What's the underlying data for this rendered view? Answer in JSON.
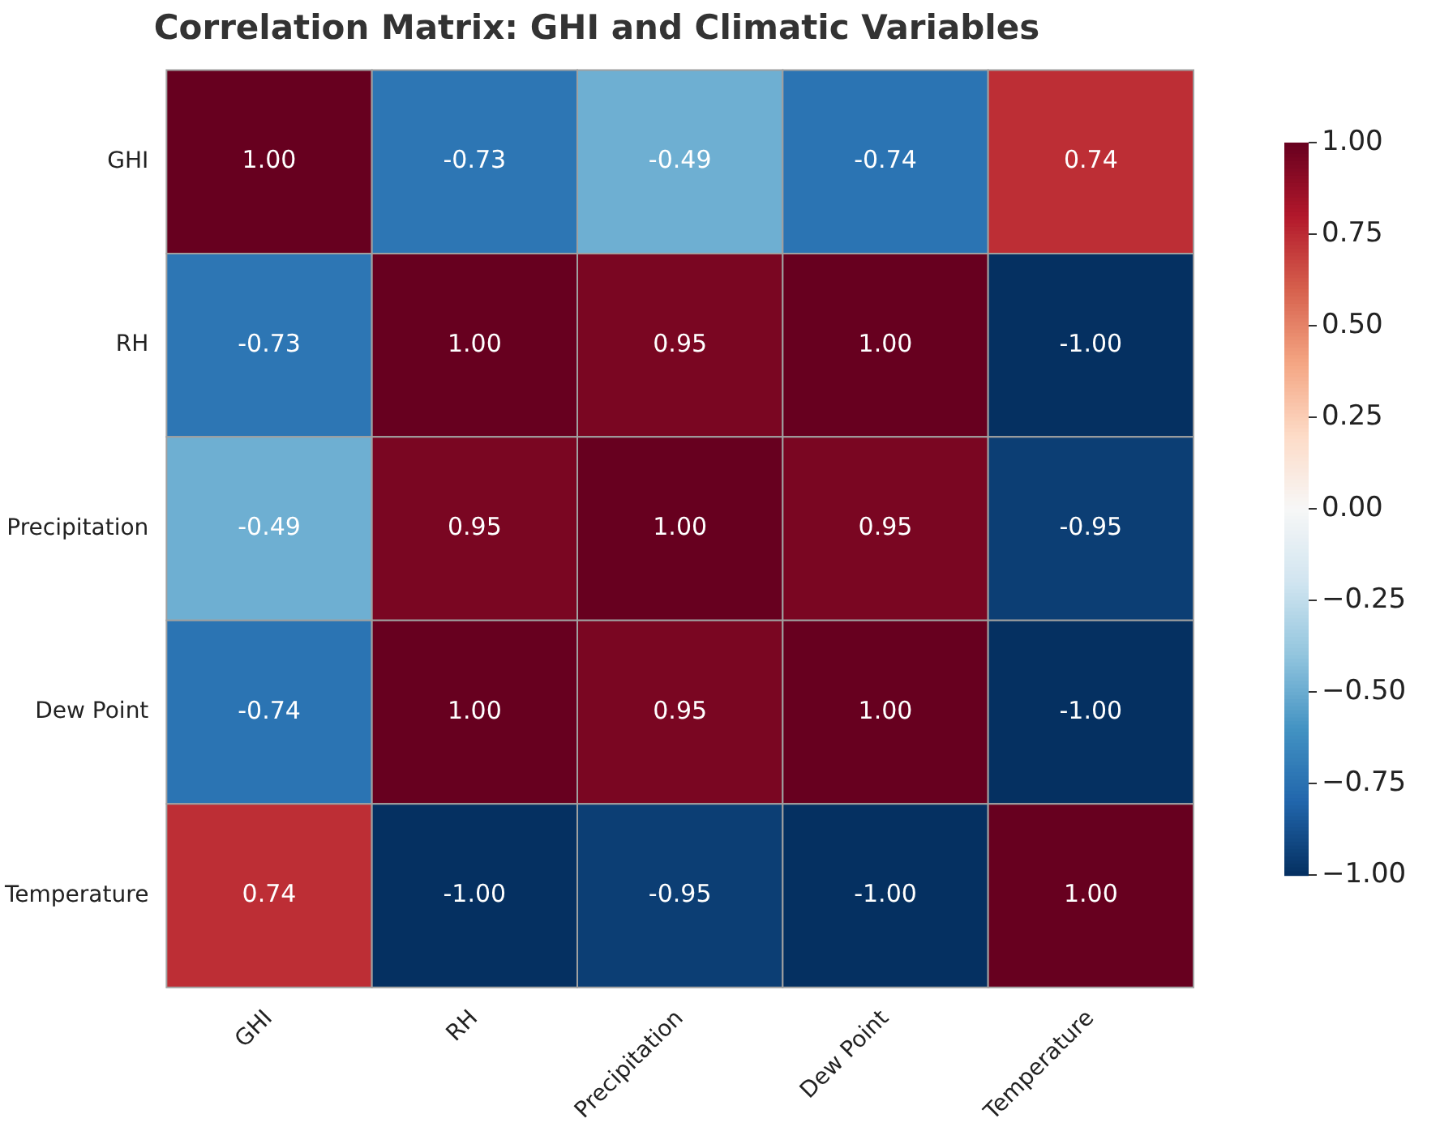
{
  "chart_data": {
    "type": "heatmap",
    "title": "Correlation Matrix: GHI and Climatic Variables",
    "categories": [
      "GHI",
      "RH",
      "Precipitation",
      "Dew Point",
      "Temperature"
    ],
    "y_categories": [
      "GHI",
      "RH",
      "Precipitation",
      "Dew Point",
      "Temperature"
    ],
    "cells": [
      [
        1.0,
        -0.73,
        -0.49,
        -0.74,
        0.74
      ],
      [
        -0.73,
        1.0,
        0.95,
        1.0,
        -1.0
      ],
      [
        -0.49,
        0.95,
        1.0,
        0.95,
        -0.95
      ],
      [
        -0.74,
        1.0,
        0.95,
        1.0,
        -1.0
      ],
      [
        0.74,
        -1.0,
        -0.95,
        -1.0,
        1.0
      ]
    ],
    "cell_labels": [
      [
        "1.00",
        "-0.73",
        "-0.49",
        "-0.74",
        "0.74"
      ],
      [
        "-0.73",
        "1.00",
        "0.95",
        "1.00",
        "-1.00"
      ],
      [
        "-0.49",
        "0.95",
        "1.00",
        "0.95",
        "-0.95"
      ],
      [
        "-0.74",
        "1.00",
        "0.95",
        "1.00",
        "-1.00"
      ],
      [
        "0.74",
        "-1.00",
        "-0.95",
        "-1.00",
        "1.00"
      ]
    ],
    "clim": [
      -1,
      1
    ],
    "cticks": [
      {
        "value": 1,
        "label": "1.00"
      },
      {
        "value": 0.75,
        "label": "0.75"
      },
      {
        "value": 0.5,
        "label": "0.50"
      },
      {
        "value": 0.25,
        "label": "0.25"
      },
      {
        "value": 0,
        "label": "0.00"
      },
      {
        "value": -0.25,
        "label": "−0.25"
      },
      {
        "value": -0.5,
        "label": "−0.50"
      },
      {
        "value": -0.75,
        "label": "−0.75"
      },
      {
        "value": -1,
        "label": "−1.00"
      }
    ],
    "data_labels": true
  }
}
